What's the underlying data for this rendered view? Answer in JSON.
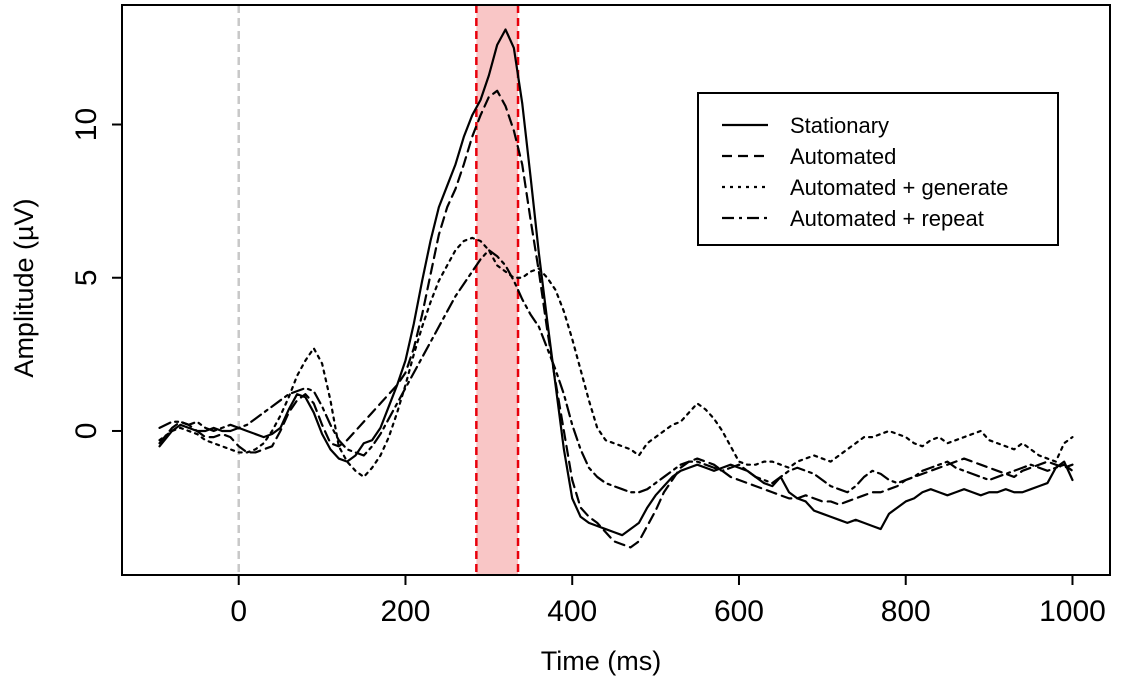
{
  "chart_data": {
    "type": "line",
    "xlabel": "Time (ms)",
    "ylabel": "Amplitude (µV)",
    "xlim": [
      -140,
      1045
    ],
    "ylim": [
      -4.7,
      13.9
    ],
    "x_ticks": [
      {
        "value": 0,
        "label": "0"
      },
      {
        "value": 200,
        "label": "200"
      },
      {
        "value": 400,
        "label": "400"
      },
      {
        "value": 600,
        "label": "600"
      },
      {
        "value": 800,
        "label": "800"
      },
      {
        "value": 1000,
        "label": "1000"
      }
    ],
    "y_ticks": [
      {
        "value": 0,
        "label": "0"
      },
      {
        "value": 5,
        "label": "5"
      },
      {
        "value": 10,
        "label": "10"
      }
    ],
    "grid": false,
    "legend_position": "top-right",
    "onset_line": {
      "x": 0,
      "color": "#c8c8c8"
    },
    "highlight_window": {
      "x_start": 285,
      "x_end": 335,
      "fill": "#f9c6c6",
      "edge_color": "#e8000b"
    },
    "series": [
      {
        "name": "Stationary",
        "dash": "solid",
        "x": [
          -95,
          -80,
          -70,
          -60,
          -50,
          -40,
          -30,
          -20,
          -10,
          0,
          10,
          20,
          30,
          40,
          50,
          60,
          70,
          80,
          90,
          100,
          110,
          120,
          130,
          140,
          150,
          160,
          170,
          180,
          190,
          200,
          210,
          220,
          230,
          240,
          250,
          260,
          270,
          280,
          290,
          300,
          310,
          320,
          330,
          340,
          350,
          360,
          370,
          380,
          390,
          400,
          410,
          420,
          430,
          440,
          450,
          460,
          470,
          480,
          490,
          500,
          510,
          520,
          530,
          540,
          550,
          560,
          570,
          580,
          590,
          600,
          610,
          620,
          630,
          640,
          650,
          660,
          670,
          680,
          690,
          700,
          710,
          720,
          730,
          740,
          750,
          760,
          770,
          780,
          790,
          800,
          810,
          820,
          830,
          840,
          850,
          860,
          870,
          880,
          890,
          900,
          910,
          920,
          930,
          940,
          950,
          960,
          970,
          980,
          990,
          1000
        ],
        "y": [
          -0.5,
          0.0,
          0.2,
          0.1,
          0.0,
          0.0,
          0.1,
          0.0,
          0.0,
          0.1,
          0.0,
          -0.1,
          -0.2,
          -0.1,
          0.1,
          0.7,
          1.2,
          1.1,
          0.6,
          -0.1,
          -0.6,
          -0.9,
          -1.0,
          -0.8,
          -0.4,
          -0.3,
          0.1,
          0.8,
          1.5,
          2.3,
          3.5,
          4.9,
          6.2,
          7.3,
          8.0,
          8.7,
          9.6,
          10.3,
          10.8,
          11.6,
          12.6,
          13.1,
          12.5,
          10.7,
          8.3,
          5.8,
          3.6,
          1.5,
          -0.6,
          -2.2,
          -2.8,
          -3.0,
          -3.1,
          -3.2,
          -3.3,
          -3.4,
          -3.2,
          -3.0,
          -2.5,
          -2.1,
          -1.8,
          -1.5,
          -1.3,
          -1.2,
          -1.1,
          -1.2,
          -1.3,
          -1.2,
          -1.1,
          -1.2,
          -1.3,
          -1.5,
          -1.7,
          -1.8,
          -1.5,
          -2.0,
          -2.2,
          -2.3,
          -2.6,
          -2.7,
          -2.8,
          -2.9,
          -3.0,
          -2.9,
          -3.0,
          -3.1,
          -3.2,
          -2.7,
          -2.5,
          -2.3,
          -2.2,
          -2.0,
          -1.9,
          -2.0,
          -2.1,
          -2.0,
          -1.9,
          -2.0,
          -2.1,
          -2.0,
          -2.0,
          -1.9,
          -2.0,
          -2.0,
          -1.9,
          -1.8,
          -1.7,
          -1.2,
          -1.0,
          -1.6
        ]
      },
      {
        "name": "Automated",
        "dash": "dashed",
        "x": [
          -95,
          -80,
          -70,
          -60,
          -50,
          -40,
          -30,
          -20,
          -10,
          0,
          10,
          20,
          30,
          40,
          50,
          60,
          70,
          80,
          90,
          100,
          110,
          120,
          130,
          140,
          150,
          160,
          170,
          180,
          190,
          200,
          210,
          220,
          230,
          240,
          250,
          260,
          270,
          280,
          290,
          300,
          310,
          320,
          330,
          340,
          350,
          360,
          370,
          380,
          390,
          400,
          410,
          420,
          430,
          440,
          450,
          460,
          470,
          480,
          490,
          500,
          510,
          520,
          530,
          540,
          550,
          560,
          570,
          580,
          590,
          600,
          610,
          620,
          630,
          640,
          650,
          660,
          670,
          680,
          690,
          700,
          710,
          720,
          730,
          740,
          750,
          760,
          770,
          780,
          790,
          800,
          810,
          820,
          830,
          840,
          850,
          860,
          870,
          880,
          890,
          900,
          910,
          920,
          930,
          940,
          950,
          960,
          970,
          980,
          990,
          1000
        ],
        "y": [
          -0.4,
          0.1,
          0.3,
          0.2,
          0.0,
          -0.2,
          -0.2,
          -0.1,
          -0.2,
          -0.5,
          -0.7,
          -0.7,
          -0.6,
          -0.5,
          0.0,
          0.6,
          1.0,
          1.2,
          0.9,
          0.2,
          -0.4,
          -0.5,
          -0.3,
          0.0,
          0.3,
          0.6,
          0.9,
          1.2,
          1.5,
          1.9,
          2.7,
          3.8,
          5.1,
          6.4,
          7.3,
          7.9,
          8.7,
          9.6,
          10.3,
          10.9,
          11.1,
          10.6,
          9.8,
          8.7,
          6.9,
          5.2,
          3.3,
          1.6,
          0.0,
          -1.6,
          -2.5,
          -2.8,
          -3.0,
          -3.3,
          -3.6,
          -3.7,
          -3.8,
          -3.6,
          -3.1,
          -2.6,
          -2.0,
          -1.6,
          -1.2,
          -1.0,
          -0.9,
          -1.0,
          -1.1,
          -1.3,
          -1.5,
          -1.6,
          -1.7,
          -1.8,
          -1.9,
          -2.0,
          -2.1,
          -2.2,
          -2.2,
          -2.1,
          -2.2,
          -2.3,
          -2.3,
          -2.4,
          -2.3,
          -2.2,
          -2.1,
          -2.0,
          -2.0,
          -1.9,
          -1.8,
          -1.6,
          -1.5,
          -1.4,
          -1.3,
          -1.2,
          -1.1,
          -1.0,
          -0.9,
          -1.0,
          -1.1,
          -1.2,
          -1.3,
          -1.4,
          -1.5,
          -1.3,
          -1.2,
          -1.1,
          -1.0,
          -1.1,
          -1.2,
          -1.1
        ]
      },
      {
        "name": "Automated + generate",
        "dash": "dotted",
        "x": [
          -95,
          -80,
          -70,
          -60,
          -50,
          -40,
          -30,
          -20,
          -10,
          0,
          10,
          20,
          30,
          40,
          50,
          60,
          70,
          80,
          90,
          100,
          110,
          120,
          130,
          140,
          150,
          160,
          170,
          180,
          190,
          200,
          210,
          220,
          230,
          240,
          250,
          260,
          270,
          280,
          290,
          300,
          310,
          320,
          330,
          340,
          350,
          360,
          370,
          380,
          390,
          400,
          410,
          420,
          430,
          440,
          450,
          460,
          470,
          480,
          490,
          500,
          510,
          520,
          530,
          540,
          550,
          560,
          570,
          580,
          590,
          600,
          610,
          620,
          630,
          640,
          650,
          660,
          670,
          680,
          690,
          700,
          710,
          720,
          730,
          740,
          750,
          760,
          770,
          780,
          790,
          800,
          810,
          820,
          830,
          840,
          850,
          860,
          870,
          880,
          890,
          900,
          910,
          920,
          930,
          940,
          950,
          960,
          970,
          980,
          990,
          1000
        ],
        "y": [
          -0.3,
          0.0,
          0.1,
          0.0,
          -0.1,
          -0.3,
          -0.4,
          -0.5,
          -0.6,
          -0.7,
          -0.7,
          -0.6,
          -0.4,
          0.0,
          0.5,
          1.1,
          1.8,
          2.3,
          2.7,
          2.2,
          1.0,
          -0.5,
          -1.0,
          -1.3,
          -1.5,
          -1.2,
          -0.8,
          -0.2,
          0.6,
          1.5,
          2.5,
          3.4,
          4.2,
          4.9,
          5.4,
          5.9,
          6.2,
          6.3,
          6.2,
          5.9,
          5.4,
          5.2,
          5.0,
          5.0,
          5.2,
          5.3,
          5.0,
          4.6,
          3.9,
          3.0,
          2.0,
          1.0,
          0.1,
          -0.3,
          -0.4,
          -0.5,
          -0.6,
          -0.8,
          -0.4,
          -0.2,
          0.0,
          0.2,
          0.3,
          0.6,
          0.9,
          0.7,
          0.4,
          0.0,
          -0.5,
          -1.0,
          -1.1,
          -1.1,
          -1.0,
          -1.0,
          -1.1,
          -1.2,
          -1.0,
          -0.9,
          -0.8,
          -0.9,
          -1.0,
          -0.8,
          -0.6,
          -0.4,
          -0.2,
          -0.2,
          -0.1,
          0.0,
          -0.1,
          -0.2,
          -0.4,
          -0.5,
          -0.3,
          -0.2,
          -0.4,
          -0.3,
          -0.2,
          -0.1,
          0.0,
          -0.3,
          -0.4,
          -0.5,
          -0.6,
          -0.4,
          -0.6,
          -0.8,
          -0.9,
          -1.0,
          -0.4,
          -0.2
        ]
      },
      {
        "name": "Automated + repeat",
        "dash": "dashdot",
        "x": [
          -95,
          -80,
          -70,
          -60,
          -50,
          -40,
          -30,
          -20,
          -10,
          0,
          10,
          20,
          30,
          40,
          50,
          60,
          70,
          80,
          90,
          100,
          110,
          120,
          130,
          140,
          150,
          160,
          170,
          180,
          190,
          200,
          210,
          220,
          230,
          240,
          250,
          260,
          270,
          280,
          290,
          300,
          310,
          320,
          330,
          340,
          350,
          360,
          370,
          380,
          390,
          400,
          410,
          420,
          430,
          440,
          450,
          460,
          470,
          480,
          490,
          500,
          510,
          520,
          530,
          540,
          550,
          560,
          570,
          580,
          590,
          600,
          610,
          620,
          630,
          640,
          650,
          660,
          670,
          680,
          690,
          700,
          710,
          720,
          730,
          740,
          750,
          760,
          770,
          780,
          790,
          800,
          810,
          820,
          830,
          840,
          850,
          860,
          870,
          880,
          890,
          900,
          910,
          920,
          930,
          940,
          950,
          960,
          970,
          980,
          990,
          1000
        ],
        "y": [
          0.1,
          0.3,
          0.3,
          0.2,
          0.3,
          0.1,
          0.0,
          0.1,
          0.2,
          0.1,
          0.2,
          0.4,
          0.6,
          0.8,
          1.0,
          1.2,
          1.3,
          1.4,
          1.3,
          0.8,
          0.2,
          -0.3,
          -0.6,
          -0.7,
          -0.8,
          -0.5,
          -0.1,
          0.4,
          0.9,
          1.4,
          1.9,
          2.4,
          2.9,
          3.4,
          3.9,
          4.4,
          4.8,
          5.2,
          5.6,
          5.9,
          5.7,
          5.4,
          4.9,
          4.3,
          3.8,
          3.4,
          2.7,
          2.0,
          1.2,
          0.2,
          -0.6,
          -1.2,
          -1.5,
          -1.7,
          -1.8,
          -1.9,
          -2.0,
          -2.0,
          -1.9,
          -1.7,
          -1.5,
          -1.3,
          -1.1,
          -1.0,
          -1.0,
          -1.1,
          -1.2,
          -1.3,
          -1.2,
          -1.1,
          -1.3,
          -1.5,
          -1.6,
          -1.7,
          -1.5,
          -1.3,
          -1.2,
          -1.3,
          -1.4,
          -1.6,
          -1.8,
          -1.9,
          -2.0,
          -1.8,
          -1.5,
          -1.3,
          -1.4,
          -1.6,
          -1.7,
          -1.6,
          -1.5,
          -1.3,
          -1.2,
          -1.1,
          -1.0,
          -1.2,
          -1.3,
          -1.4,
          -1.5,
          -1.6,
          -1.5,
          -1.4,
          -1.3,
          -1.2,
          -1.1,
          -1.2,
          -1.3,
          -1.2,
          -1.1,
          -1.3
        ]
      }
    ]
  }
}
